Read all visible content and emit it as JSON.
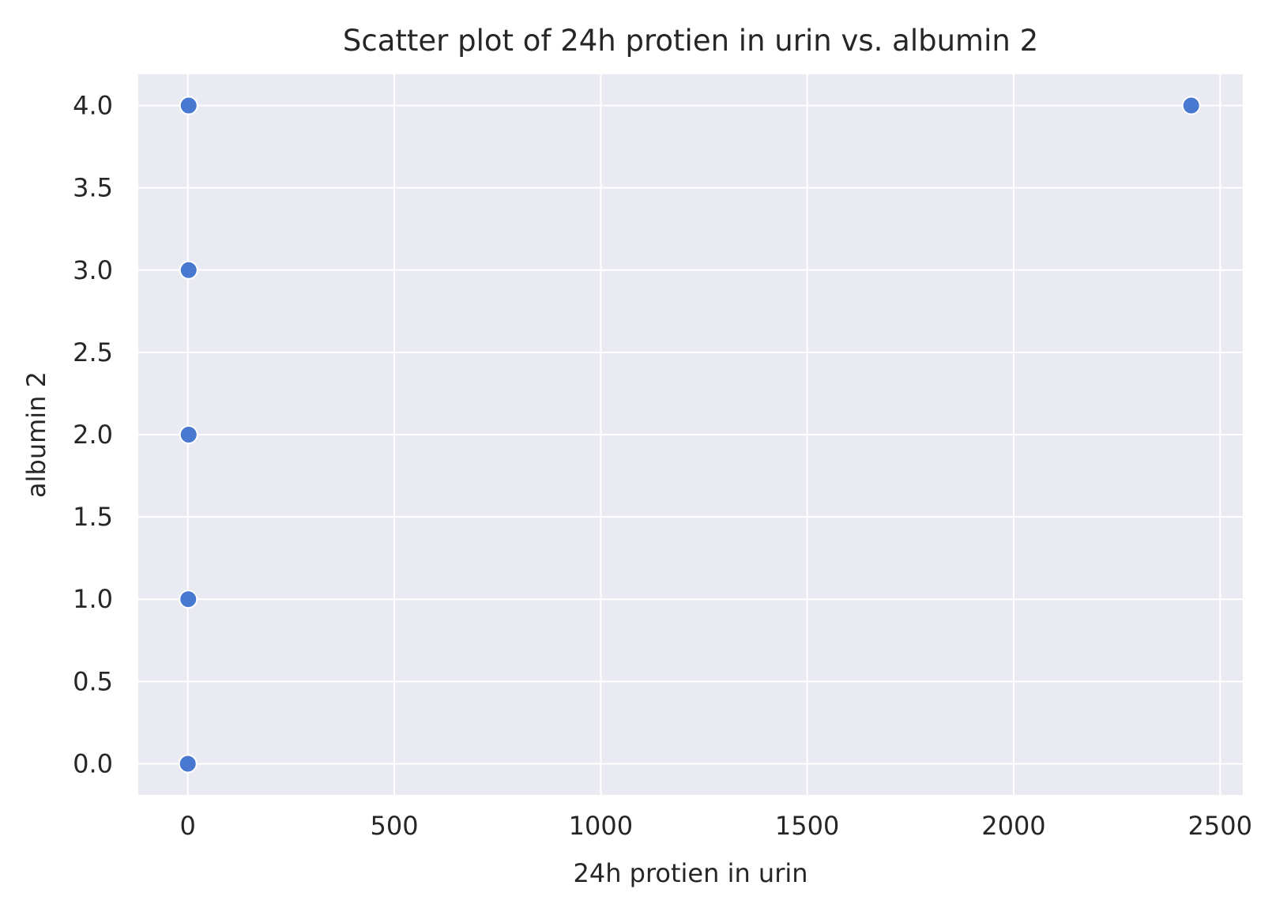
{
  "chart_data": {
    "type": "scatter",
    "title": "Scatter plot of 24h protien in urin vs. albumin 2",
    "xlabel": "24h protien in urin",
    "ylabel": "albumin 2",
    "xlim": [
      -120,
      2555
    ],
    "ylim": [
      -0.19,
      4.19
    ],
    "xticks": [
      0,
      500,
      1000,
      1500,
      2000,
      2500
    ],
    "xtick_labels": [
      "0",
      "500",
      "1000",
      "1500",
      "2000",
      "2500"
    ],
    "yticks": [
      0.0,
      0.5,
      1.0,
      1.5,
      2.0,
      2.5,
      3.0,
      3.5,
      4.0
    ],
    "ytick_labels": [
      "0.0",
      "0.5",
      "1.0",
      "1.5",
      "2.0",
      "2.5",
      "3.0",
      "3.5",
      "4.0"
    ],
    "grid": true,
    "points": [
      {
        "x": 2,
        "y": 4.0
      },
      {
        "x": 2,
        "y": 3.0
      },
      {
        "x": 2,
        "y": 2.0
      },
      {
        "x": 1,
        "y": 1.0
      },
      {
        "x": 0,
        "y": 0.0
      },
      {
        "x": 2430,
        "y": 4.0
      }
    ],
    "colors": {
      "background": "#eaeaf2",
      "grid": "#ffffff",
      "point_fill": "#4878d0",
      "point_edge": "#ffffff",
      "text": "#262626"
    }
  }
}
